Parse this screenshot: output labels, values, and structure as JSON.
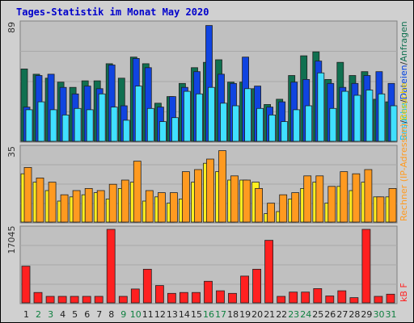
{
  "chart_data": {
    "type": "bar",
    "title": "Tages-Statistik im Monat May 2020",
    "categories": [
      "1",
      "2",
      "3",
      "4",
      "5",
      "6",
      "7",
      "8",
      "9",
      "10",
      "11",
      "12",
      "13",
      "14",
      "15",
      "16",
      "17",
      "18",
      "19",
      "20",
      "21",
      "22",
      "23",
      "24",
      "25",
      "26",
      "27",
      "28",
      "29",
      "30",
      "31"
    ],
    "weekend_days": [
      "2",
      "3",
      "9",
      "10",
      "16",
      "17",
      "23",
      "24",
      "30",
      "31"
    ],
    "panels": [
      {
        "name": "top",
        "ymax_label": "89",
        "ylim": [
          0,
          89
        ],
        "series": [
          {
            "name": "Anfragen",
            "color": "#107050",
            "values": [
              55,
              51,
              48,
              45,
              41,
              46,
              46,
              59,
              48,
              64,
              59,
              29,
              34,
              44,
              56,
              60,
              62,
              45,
              45,
              40,
              28,
              32,
              50,
              65,
              68,
              47,
              60,
              50,
              53,
              32,
              30
            ]
          },
          {
            "name": "Dateien",
            "color": "#1044e0",
            "values": [
              26,
              50,
              51,
              41,
              36,
              42,
              40,
              58,
              27,
              63,
              56,
              26,
              34,
              41,
              53,
              88,
              51,
              44,
              64,
              42,
              26,
              30,
              45,
              47,
              61,
              44,
              41,
              44,
              50,
              53,
              44
            ]
          },
          {
            "name": "Besuche",
            "color": "#40e0ff",
            "values": [
              24,
              30,
              24,
              20,
              25,
              24,
              36,
              26,
              16,
              42,
              25,
              15,
              18,
              38,
              36,
              41,
              29,
              27,
              40,
              25,
              20,
              15,
              24,
              27,
              52,
              25,
              38,
              35,
              39,
              36,
              27
            ]
          }
        ]
      },
      {
        "name": "middle",
        "ymax_label": "35",
        "ylim": [
          0,
          35
        ],
        "series": [
          {
            "name": "Rechner",
            "color": "#ffef20",
            "values": [
              23,
              19,
              15,
              10,
              12,
              13,
              14,
              11,
              16,
              19,
              10,
              12,
              9,
              11,
              19,
              28,
              24,
              20,
              20,
              19,
              4,
              5,
              11,
              16,
              19,
              9,
              17,
              15,
              19,
              12,
              12
            ]
          },
          {
            "name": "Besuche",
            "color": "#ff9a20",
            "values": [
              26,
              21,
              19,
              13,
              15,
              16,
              15,
              18,
              20,
              29,
              15,
              14,
              14,
              24,
              25,
              30,
              34,
              22,
              20,
              16,
              9,
              13,
              14,
              22,
              22,
              17,
              24,
              23,
              25,
              12,
              16
            ]
          }
        ]
      },
      {
        "name": "bottom",
        "ymax_label": "17045",
        "ylim": [
          0,
          17045
        ],
        "series": [
          {
            "name": "kB F",
            "color": "#ff2020",
            "values": [
              8500,
              2400,
              1500,
              1500,
              1500,
              1500,
              1500,
              17045,
              1500,
              3200,
              7800,
              4000,
              2200,
              2400,
              2400,
              5000,
              2800,
              2200,
              6200,
              7800,
              14500,
              1500,
              2500,
              2500,
              3300,
              1600,
              2800,
              1200,
              17045,
              1500,
              2000
            ]
          }
        ]
      }
    ],
    "right_labels": {
      "top": [
        {
          "text": "Besuche",
          "color": "#00c8ff"
        },
        {
          "text": "/",
          "color": "#303030"
        },
        {
          "text": "Dateien",
          "color": "#0040e0"
        },
        {
          "text": "/",
          "color": "#303030"
        },
        {
          "text": "Anfragen",
          "color": "#107050"
        }
      ],
      "middle": [
        {
          "text": "Rechner (IP-Adressen)",
          "color": "#ff9a20"
        },
        {
          "text": "/",
          "color": "#303030"
        },
        {
          "text": "Besuche",
          "color": "#e8c800"
        }
      ],
      "bottom": [
        {
          "text": "kB F",
          "color": "#ff2020"
        }
      ]
    }
  }
}
